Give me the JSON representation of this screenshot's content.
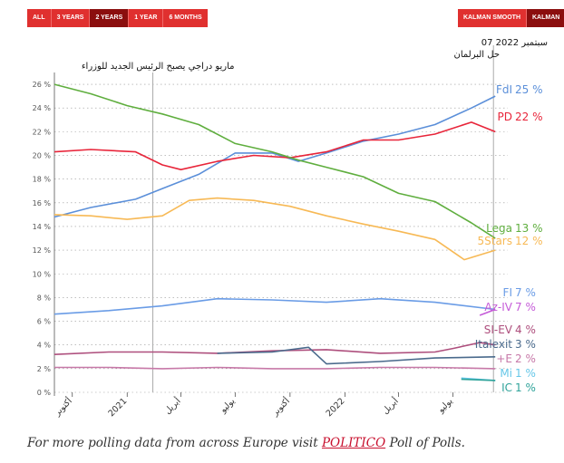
{
  "controls": {
    "range_buttons": [
      {
        "label": "ALL",
        "active": false
      },
      {
        "label": "3 YEARS",
        "active": false
      },
      {
        "label": "2 YEARS",
        "active": true
      },
      {
        "label": "1 YEAR",
        "active": false
      },
      {
        "label": "6 MONTHS",
        "active": false
      }
    ],
    "mode_buttons": [
      {
        "label": "KALMAN SMOOTH",
        "active": false
      },
      {
        "label": "KALMAN",
        "active": true
      }
    ]
  },
  "footer": {
    "prefix": "For more polling data from across Europe visit",
    "link": "POLITICO",
    "suffix": "Poll of Polls."
  },
  "colors": {
    "FdI": "#5b8fd9",
    "PD": "#e8253a",
    "Lega": "#5fae3e",
    "5Stars": "#f7b955",
    "FI": "#6a9ce6",
    "Az-IV": "#c55bd8",
    "SI-EV": "#ae4f7d",
    "Italexit": "#4a6a8c",
    "+E": "#c779a8",
    "Mi": "#66c7e8",
    "IC": "#2fa39a",
    "axis": "#555555",
    "grid": "#999999"
  },
  "chart_data": {
    "type": "line",
    "y_unit": "%",
    "ylim": [
      0,
      27
    ],
    "y_ticks": [
      "0 %",
      "2 %",
      "4 %",
      "6 %",
      "8 %",
      "10 %",
      "12 %",
      "14 %",
      "16 %",
      "18 %",
      "20 %",
      "22 %",
      "24 %",
      "26 %"
    ],
    "x_range": [
      "2020-09-01",
      "2022-10-01"
    ],
    "x_ticks": [
      {
        "label": "أكتوبر",
        "date": "2020-10-01"
      },
      {
        "label": "2021",
        "date": "2021-01-01"
      },
      {
        "label": "أبريل",
        "date": "2021-04-01"
      },
      {
        "label": "يوليو",
        "date": "2021-07-01"
      },
      {
        "label": "أكتوبر",
        "date": "2021-10-01"
      },
      {
        "label": "2022",
        "date": "2022-01-01"
      },
      {
        "label": "أبريل",
        "date": "2022-04-01"
      },
      {
        "label": "يوليو",
        "date": "2022-07-01"
      }
    ],
    "annotations": [
      {
        "text": "ماريو دراجي يصبح الرئيس الجديد للوزراء",
        "date": "2021-02-13"
      },
      {
        "date_text": "07 سبتمبر 2022",
        "text": "حل البرلمان",
        "date": "2022-09-07"
      }
    ],
    "series": [
      {
        "name": "FdI",
        "label": "25 %",
        "x": [
          "2020-09-01",
          "2020-11-01",
          "2021-01-15",
          "2021-03-01",
          "2021-05-01",
          "2021-07-01",
          "2021-09-01",
          "2021-10-15",
          "2021-12-01",
          "2022-02-01",
          "2022-04-01",
          "2022-06-01",
          "2022-08-01",
          "2022-09-10"
        ],
        "y": [
          14.8,
          15.6,
          16.3,
          17.2,
          18.4,
          20.2,
          20.2,
          19.5,
          20.2,
          21.2,
          21.8,
          22.6,
          24,
          25
        ]
      },
      {
        "name": "PD",
        "label": "22 %",
        "x": [
          "2020-09-01",
          "2020-11-01",
          "2021-01-15",
          "2021-03-01",
          "2021-04-01",
          "2021-06-01",
          "2021-08-01",
          "2021-10-01",
          "2021-12-01",
          "2022-02-01",
          "2022-04-01",
          "2022-06-01",
          "2022-08-01",
          "2022-09-10"
        ],
        "y": [
          20.3,
          20.5,
          20.3,
          19.2,
          18.8,
          19.5,
          20,
          19.8,
          20.3,
          21.3,
          21.3,
          21.8,
          22.8,
          22
        ]
      },
      {
        "name": "Lega",
        "label": "13 %",
        "x": [
          "2020-09-01",
          "2020-11-01",
          "2021-01-01",
          "2021-03-01",
          "2021-05-01",
          "2021-07-01",
          "2021-09-01",
          "2021-10-15",
          "2021-12-01",
          "2022-02-01",
          "2022-04-01",
          "2022-06-01",
          "2022-08-01",
          "2022-09-10"
        ],
        "y": [
          26,
          25.2,
          24.2,
          23.5,
          22.6,
          21,
          20.3,
          19.6,
          19,
          18.2,
          16.8,
          16.1,
          14.3,
          13
        ]
      },
      {
        "name": "5Stars",
        "label": "12 %",
        "x": [
          "2020-09-01",
          "2020-11-01",
          "2021-01-01",
          "2021-03-01",
          "2021-04-15",
          "2021-06-01",
          "2021-08-01",
          "2021-10-01",
          "2021-12-01",
          "2022-02-01",
          "2022-04-01",
          "2022-06-01",
          "2022-07-20",
          "2022-09-10"
        ],
        "y": [
          15,
          14.9,
          14.6,
          14.9,
          16.2,
          16.4,
          16.2,
          15.7,
          14.9,
          14.2,
          13.6,
          12.9,
          11.2,
          12
        ]
      },
      {
        "name": "FI",
        "label": "7 %",
        "x": [
          "2020-09-01",
          "2020-12-01",
          "2021-03-01",
          "2021-06-01",
          "2021-09-01",
          "2021-12-01",
          "2022-03-01",
          "2022-06-01",
          "2022-09-10"
        ],
        "y": [
          6.6,
          6.9,
          7.3,
          7.9,
          7.8,
          7.6,
          7.9,
          7.6,
          7
        ]
      },
      {
        "name": "Az-IV",
        "label": "7 %",
        "x": [
          "2020-09-01",
          "2021-06-01",
          "2022-03-01",
          "2022-07-01",
          "2022-08-15",
          "2022-09-10"
        ],
        "y": [
          null,
          null,
          null,
          null,
          6.5,
          7
        ]
      },
      {
        "name": "SI-EV",
        "label": "4 %",
        "x": [
          "2020-09-01",
          "2020-12-01",
          "2021-03-01",
          "2021-06-01",
          "2021-09-01",
          "2021-12-01",
          "2022-03-01",
          "2022-06-01",
          "2022-07-01",
          "2022-08-15",
          "2022-09-10"
        ],
        "y": [
          3.2,
          3.4,
          3.4,
          3.3,
          3.5,
          3.6,
          3.3,
          3.4,
          3.7,
          4.2,
          4
        ]
      },
      {
        "name": "Italexit",
        "label": "3 %",
        "x": [
          "2020-09-01",
          "2021-06-01",
          "2021-09-01",
          "2021-11-01",
          "2021-12-01",
          "2022-03-01",
          "2022-06-01",
          "2022-09-10"
        ],
        "y": [
          null,
          3.3,
          3.4,
          3.8,
          2.4,
          2.6,
          2.9,
          3
        ]
      },
      {
        "name": "+E",
        "label": "2 %",
        "x": [
          "2020-09-01",
          "2020-12-01",
          "2021-03-01",
          "2021-06-01",
          "2021-09-01",
          "2021-12-01",
          "2022-03-01",
          "2022-06-01",
          "2022-09-10"
        ],
        "y": [
          2.1,
          2.1,
          2,
          2.1,
          2,
          2,
          2.1,
          2.1,
          2
        ]
      },
      {
        "name": "Mi",
        "label": "1 %",
        "x": [
          "2022-07-15",
          "2022-09-10"
        ],
        "y": [
          1.2,
          1
        ]
      },
      {
        "name": "IC",
        "label": "1 %",
        "x": [
          "2022-07-15",
          "2022-09-10"
        ],
        "y": [
          1.1,
          1
        ]
      }
    ]
  }
}
